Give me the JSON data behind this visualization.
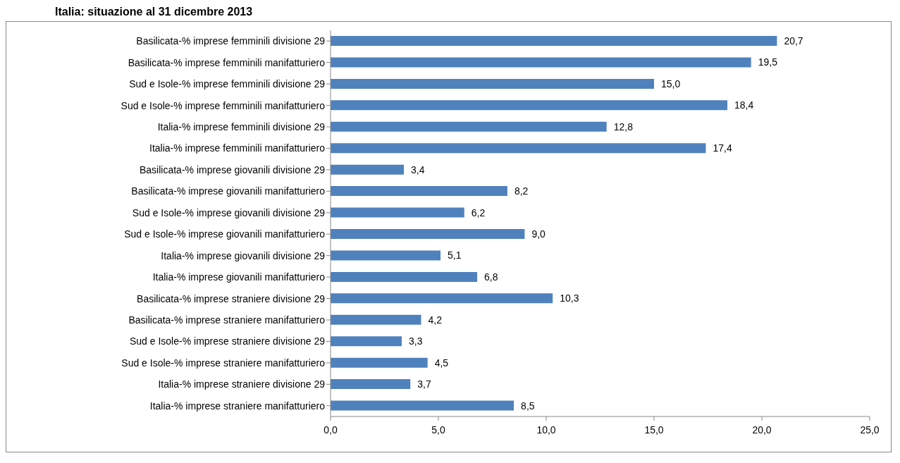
{
  "chart_data": {
    "type": "bar",
    "orientation": "horizontal",
    "title": "Italia: situazione al 31 dicembre 2013",
    "categories": [
      "Basilicata-% imprese femminili divisione 29",
      "Basilicata-% imprese femminili manifatturiero",
      "Sud e Isole-% imprese femminili divisione 29",
      "Sud e Isole-% imprese femminili manifatturiero",
      "Italia-% imprese femminili divisione 29",
      "Italia-% imprese femminili manifatturiero",
      "Basilicata-% imprese giovanili divisione 29",
      "Basilicata-% imprese giovanili manifatturiero",
      "Sud e Isole-% imprese giovanili divisione 29",
      "Sud e Isole-% imprese giovanili manifatturiero",
      "Italia-% imprese giovanili divisione 29",
      "Italia-% imprese giovanili manifatturiero",
      "Basilicata-% imprese straniere divisione 29",
      "Basilicata-% imprese straniere manifatturiero",
      "Sud e Isole-% imprese straniere divisione 29",
      "Sud e Isole-% imprese straniere manifatturiero",
      "Italia-% imprese straniere divisione 29",
      "Italia-% imprese straniere manifatturiero"
    ],
    "values": [
      20.7,
      19.5,
      15.0,
      18.4,
      12.8,
      17.4,
      3.4,
      8.2,
      6.2,
      9.0,
      5.1,
      6.8,
      10.3,
      4.2,
      3.3,
      4.5,
      3.7,
      8.5
    ],
    "value_labels": [
      "20,7",
      "19,5",
      "15,0",
      "18,4",
      "12,8",
      "17,4",
      "3,4",
      "8,2",
      "6,2",
      "9,0",
      "5,1",
      "6,8",
      "10,3",
      "4,2",
      "3,3",
      "4,5",
      "3,7",
      "8,5"
    ],
    "color": "#4f81bd",
    "xlim": [
      0,
      25
    ],
    "xticks": [
      {
        "value": 0,
        "label": "0,0"
      },
      {
        "value": 5,
        "label": "5,0"
      },
      {
        "value": 10,
        "label": "10,0"
      },
      {
        "value": 15,
        "label": "15,0"
      },
      {
        "value": 20,
        "label": "20,0"
      },
      {
        "value": 25,
        "label": "25,0"
      }
    ],
    "grid": false
  }
}
